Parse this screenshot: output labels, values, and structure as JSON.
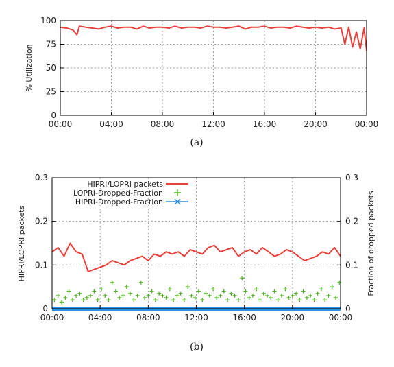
{
  "chart_data": [
    {
      "type": "line",
      "caption": "(a)",
      "ylabel": "% Utilization",
      "xlabel": "",
      "x_ticks": [
        "00:00",
        "04:00",
        "08:00",
        "12:00",
        "16:00",
        "20:00",
        "00:00"
      ],
      "y_ticks": [
        "0",
        "25",
        "50",
        "75",
        "100"
      ],
      "xlim": [
        0,
        24
      ],
      "ylim": [
        0,
        100
      ],
      "grid": true,
      "series": [
        {
          "color": "#e8403a",
          "x": [
            0,
            0.5,
            1,
            1.3,
            1.5,
            2,
            2.5,
            3,
            3.5,
            4,
            4.5,
            5,
            5.5,
            6,
            6.5,
            7,
            7.5,
            8,
            8.5,
            9,
            9.5,
            10,
            10.5,
            11,
            11.5,
            12,
            12.5,
            13,
            13.5,
            14,
            14.5,
            15,
            15.5,
            16,
            16.5,
            17,
            17.5,
            18,
            18.5,
            19,
            19.5,
            20,
            20.5,
            21,
            21.5,
            22,
            22.3,
            22.6,
            22.9,
            23.2,
            23.5,
            23.8,
            24
          ],
          "y": [
            93,
            92,
            90,
            85,
            94,
            93,
            92,
            91,
            93,
            94,
            92,
            93,
            93,
            91,
            94,
            92,
            93,
            93,
            92,
            94,
            92,
            93,
            93,
            92,
            94,
            93,
            93,
            92,
            93,
            94,
            91,
            93,
            93,
            94,
            92,
            93,
            93,
            92,
            94,
            93,
            92,
            93,
            92,
            93,
            91,
            92,
            75,
            93,
            72,
            88,
            70,
            92,
            68
          ]
        }
      ]
    },
    {
      "type": "line",
      "caption": "(b)",
      "ylabel": "HIPRI/LOPRI packets",
      "y2label": "Fraction of dropped packets",
      "x_ticks": [
        "00:00",
        "04:00",
        "08:00",
        "12:00",
        "16:00",
        "20:00",
        "00:00"
      ],
      "y_ticks": [
        "0",
        "0.1",
        "0.2",
        "0.3"
      ],
      "y2_ticks": [
        "0",
        "0.1",
        "0.2",
        "0.3"
      ],
      "xlim": [
        0,
        24
      ],
      "ylim": [
        0,
        0.3
      ],
      "y2lim": [
        0,
        0.3
      ],
      "grid": true,
      "legend": "top-left",
      "series": [
        {
          "name": "HIPRI/LOPRI packets",
          "color": "#e8403a",
          "marker": "line",
          "x": [
            0,
            0.5,
            1,
            1.5,
            2,
            2.5,
            3,
            3.5,
            4,
            4.5,
            5,
            5.5,
            6,
            6.5,
            7,
            7.5,
            8,
            8.5,
            9,
            9.5,
            10,
            10.5,
            11,
            11.5,
            12,
            12.5,
            13,
            13.5,
            14,
            14.5,
            15,
            15.5,
            16,
            16.5,
            17,
            17.5,
            18,
            18.5,
            19,
            19.5,
            20,
            20.5,
            21,
            21.5,
            22,
            22.5,
            23,
            23.5,
            24
          ],
          "y": [
            0.13,
            0.14,
            0.12,
            0.15,
            0.13,
            0.125,
            0.085,
            0.09,
            0.095,
            0.1,
            0.11,
            0.105,
            0.1,
            0.11,
            0.115,
            0.12,
            0.11,
            0.125,
            0.12,
            0.13,
            0.125,
            0.13,
            0.12,
            0.135,
            0.13,
            0.125,
            0.14,
            0.145,
            0.13,
            0.135,
            0.14,
            0.12,
            0.13,
            0.135,
            0.125,
            0.14,
            0.13,
            0.12,
            0.125,
            0.135,
            0.13,
            0.12,
            0.11,
            0.115,
            0.12,
            0.13,
            0.125,
            0.14,
            0.12
          ]
        },
        {
          "name": "LOPRI-Dropped-Fraction",
          "color": "#55b526",
          "marker": "plus",
          "x": [
            0.2,
            0.5,
            0.8,
            1.1,
            1.4,
            1.7,
            2.0,
            2.3,
            2.6,
            2.9,
            3.2,
            3.5,
            3.8,
            4.1,
            4.4,
            4.7,
            5.0,
            5.3,
            5.6,
            5.9,
            6.2,
            6.5,
            6.8,
            7.1,
            7.4,
            7.7,
            8.0,
            8.3,
            8.6,
            8.9,
            9.2,
            9.5,
            9.8,
            10.1,
            10.4,
            10.7,
            11.0,
            11.3,
            11.6,
            11.9,
            12.2,
            12.5,
            12.8,
            13.1,
            13.4,
            13.7,
            14.0,
            14.3,
            14.6,
            14.9,
            15.2,
            15.5,
            15.8,
            16.1,
            16.4,
            16.7,
            17.0,
            17.3,
            17.6,
            17.9,
            18.2,
            18.5,
            18.8,
            19.1,
            19.4,
            19.7,
            20.0,
            20.3,
            20.6,
            20.9,
            21.2,
            21.5,
            21.8,
            22.1,
            22.4,
            22.7,
            23.0,
            23.3,
            23.6,
            23.9
          ],
          "y": [
            0.02,
            0.03,
            0.015,
            0.025,
            0.04,
            0.02,
            0.03,
            0.035,
            0.02,
            0.025,
            0.03,
            0.04,
            0.02,
            0.045,
            0.03,
            0.02,
            0.06,
            0.04,
            0.025,
            0.03,
            0.05,
            0.035,
            0.02,
            0.03,
            0.06,
            0.025,
            0.03,
            0.04,
            0.02,
            0.035,
            0.03,
            0.025,
            0.045,
            0.02,
            0.03,
            0.035,
            0.02,
            0.05,
            0.03,
            0.025,
            0.04,
            0.02,
            0.035,
            0.03,
            0.045,
            0.025,
            0.03,
            0.04,
            0.02,
            0.035,
            0.03,
            0.02,
            0.07,
            0.04,
            0.025,
            0.03,
            0.045,
            0.02,
            0.035,
            0.03,
            0.025,
            0.04,
            0.02,
            0.03,
            0.045,
            0.025,
            0.03,
            0.035,
            0.02,
            0.04,
            0.025,
            0.03,
            0.02,
            0.035,
            0.045,
            0.02,
            0.03,
            0.05,
            0.025,
            0.06
          ]
        },
        {
          "name": "HIPRI-Dropped-Fraction",
          "color": "#2f8fe0",
          "marker": "cross",
          "x": [
            0,
            24
          ],
          "y": [
            0,
            0
          ]
        }
      ]
    }
  ]
}
